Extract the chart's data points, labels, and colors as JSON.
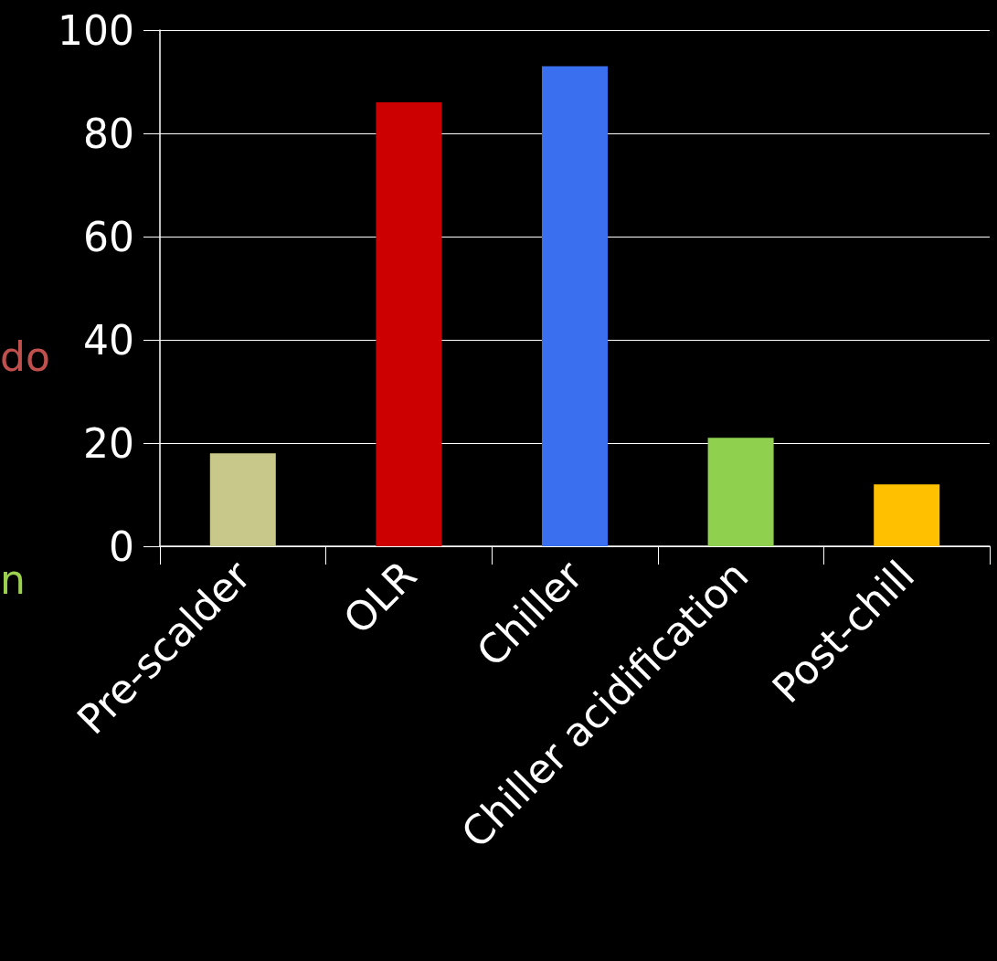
{
  "chart_data": {
    "type": "bar",
    "categories": [
      "Pre-scalder",
      "OLR",
      "Chiller",
      "Chiller acidification",
      "Post-chill"
    ],
    "values": [
      18,
      86,
      93,
      21,
      12
    ],
    "colors": [
      "#c8c88a",
      "#cc0000",
      "#3a6ff0",
      "#8fd14f",
      "#ffc000"
    ],
    "ylim": [
      0,
      100
    ],
    "yticks": [
      0,
      20,
      40,
      60,
      80,
      100
    ],
    "grid": "y",
    "annotations": [
      "do",
      "n"
    ]
  }
}
